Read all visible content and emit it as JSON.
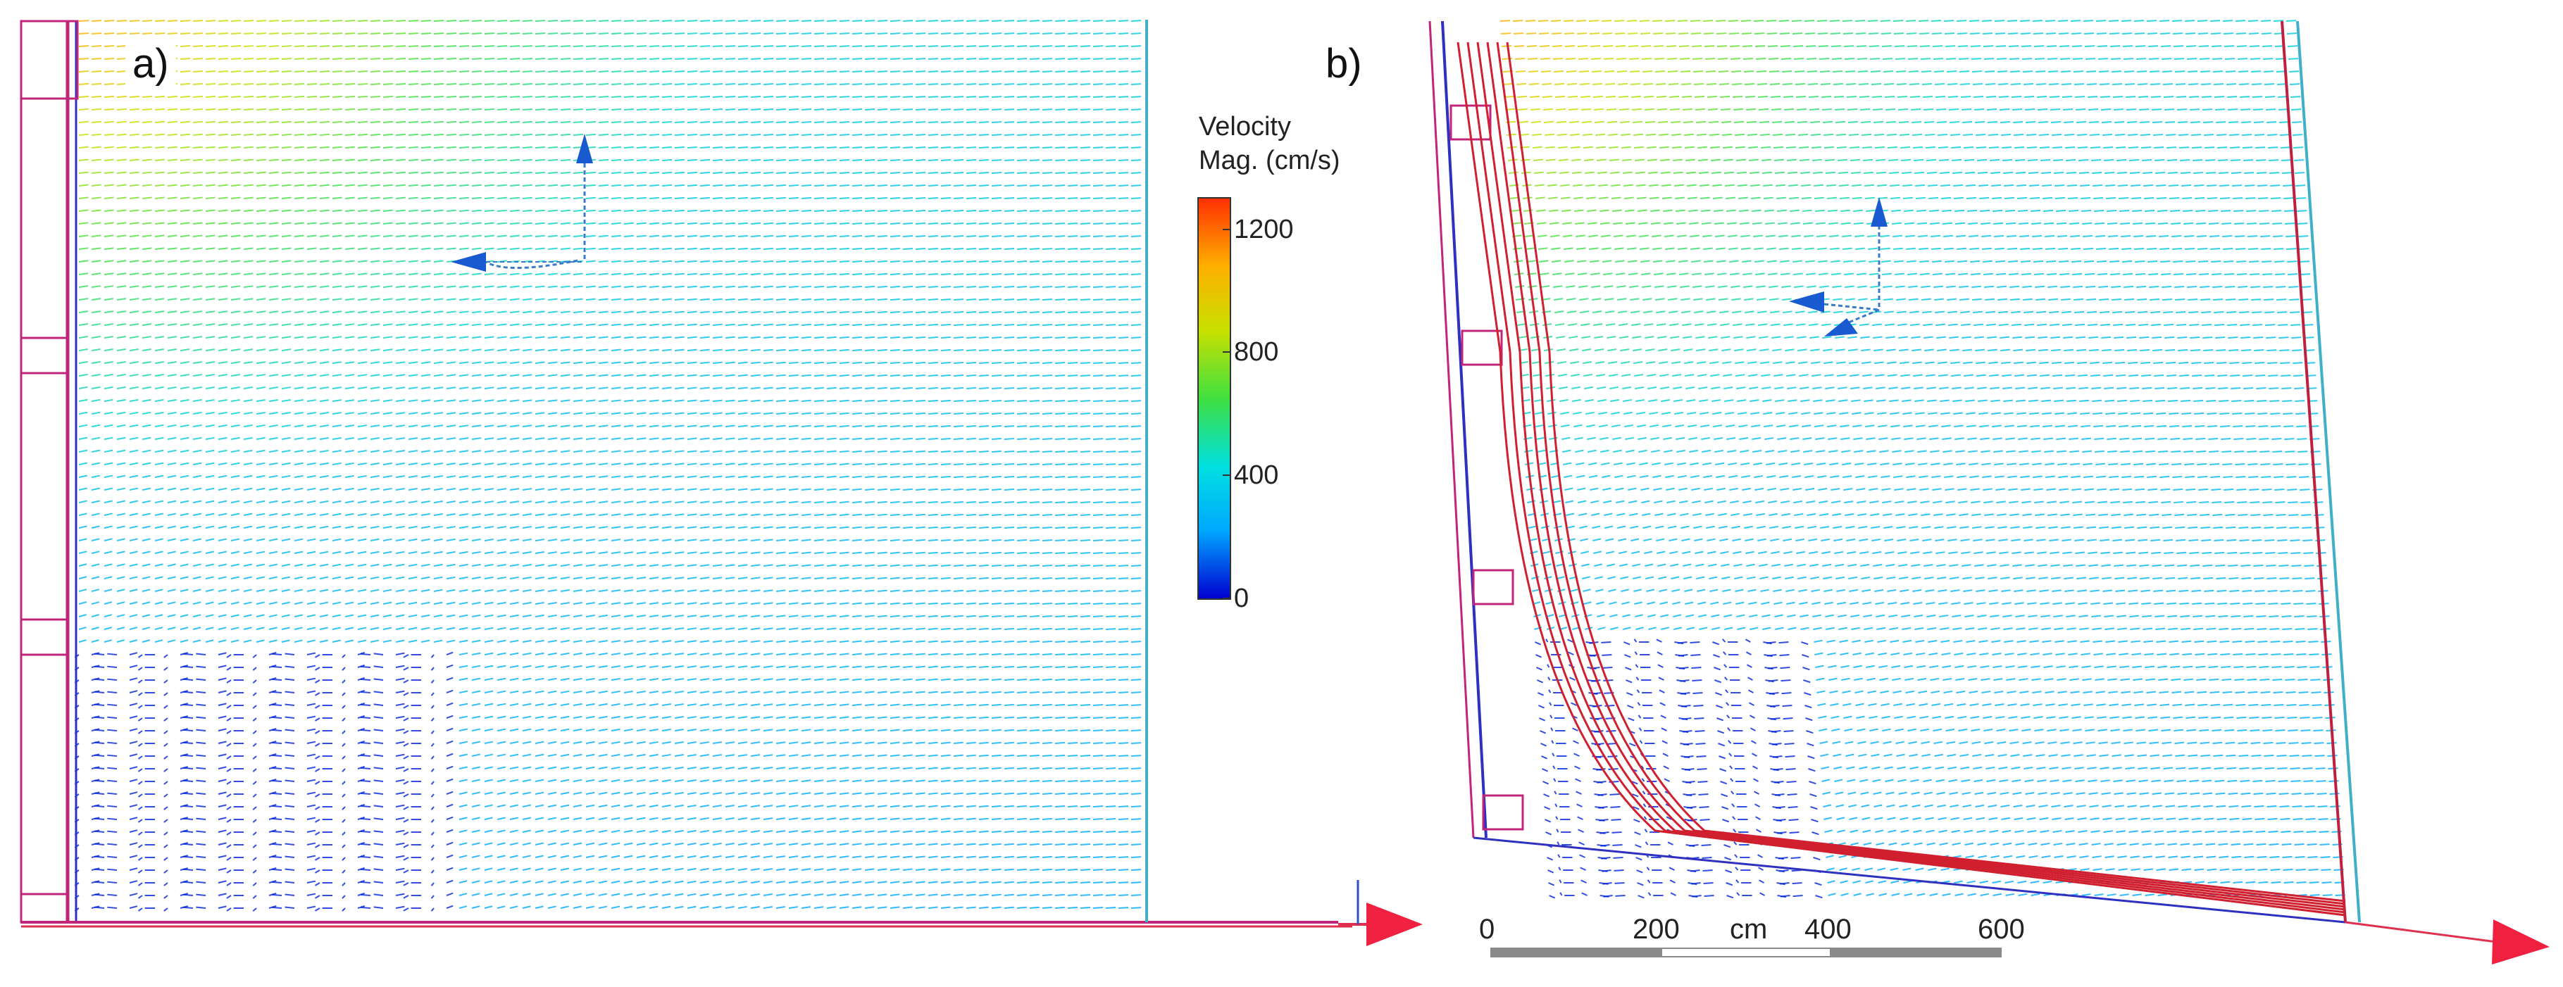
{
  "panels": [
    {
      "label": "a)"
    },
    {
      "label": "b)"
    }
  ],
  "colorbar": {
    "title_line1": "Velocity",
    "title_line2": "Mag. (cm/s)",
    "ticks": [
      "1200",
      "800",
      "400",
      "0"
    ],
    "range": [
      0,
      1300
    ],
    "tick_values": [
      1200,
      800,
      400,
      0
    ],
    "colors": [
      "#0000d0",
      "#00a8ff",
      "#00e0e0",
      "#40e040",
      "#c8e000",
      "#ffb000",
      "#ff3000"
    ]
  },
  "scale_bar": {
    "tick_labels": [
      "0",
      "200",
      "400",
      "600"
    ],
    "unit": "cm"
  }
}
